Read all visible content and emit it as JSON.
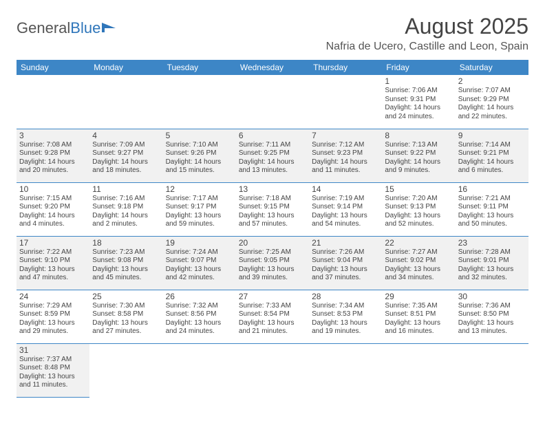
{
  "brand": {
    "part1": "General",
    "part2": "Blue"
  },
  "title": "August 2025",
  "location": "Nafria de Ucero, Castille and Leon, Spain",
  "colors": {
    "header_bg": "#3d86c6",
    "header_text": "#ffffff",
    "alt_row_bg": "#f1f1f1",
    "border": "#3d86c6",
    "logo_accent": "#2f76ba"
  },
  "typography": {
    "title_fontsize": 32,
    "location_fontsize": 16,
    "dayheader_fontsize": 12,
    "daynum_fontsize": 12,
    "cell_fontsize": 10
  },
  "day_headers": [
    "Sunday",
    "Monday",
    "Tuesday",
    "Wednesday",
    "Thursday",
    "Friday",
    "Saturday"
  ],
  "first_weekday_index": 5,
  "days": [
    {
      "n": 1,
      "sunrise": "7:06 AM",
      "sunset": "9:31 PM",
      "daylight": "14 hours and 24 minutes."
    },
    {
      "n": 2,
      "sunrise": "7:07 AM",
      "sunset": "9:29 PM",
      "daylight": "14 hours and 22 minutes."
    },
    {
      "n": 3,
      "sunrise": "7:08 AM",
      "sunset": "9:28 PM",
      "daylight": "14 hours and 20 minutes."
    },
    {
      "n": 4,
      "sunrise": "7:09 AM",
      "sunset": "9:27 PM",
      "daylight": "14 hours and 18 minutes."
    },
    {
      "n": 5,
      "sunrise": "7:10 AM",
      "sunset": "9:26 PM",
      "daylight": "14 hours and 15 minutes."
    },
    {
      "n": 6,
      "sunrise": "7:11 AM",
      "sunset": "9:25 PM",
      "daylight": "14 hours and 13 minutes."
    },
    {
      "n": 7,
      "sunrise": "7:12 AM",
      "sunset": "9:23 PM",
      "daylight": "14 hours and 11 minutes."
    },
    {
      "n": 8,
      "sunrise": "7:13 AM",
      "sunset": "9:22 PM",
      "daylight": "14 hours and 9 minutes."
    },
    {
      "n": 9,
      "sunrise": "7:14 AM",
      "sunset": "9:21 PM",
      "daylight": "14 hours and 6 minutes."
    },
    {
      "n": 10,
      "sunrise": "7:15 AM",
      "sunset": "9:20 PM",
      "daylight": "14 hours and 4 minutes."
    },
    {
      "n": 11,
      "sunrise": "7:16 AM",
      "sunset": "9:18 PM",
      "daylight": "14 hours and 2 minutes."
    },
    {
      "n": 12,
      "sunrise": "7:17 AM",
      "sunset": "9:17 PM",
      "daylight": "13 hours and 59 minutes."
    },
    {
      "n": 13,
      "sunrise": "7:18 AM",
      "sunset": "9:15 PM",
      "daylight": "13 hours and 57 minutes."
    },
    {
      "n": 14,
      "sunrise": "7:19 AM",
      "sunset": "9:14 PM",
      "daylight": "13 hours and 54 minutes."
    },
    {
      "n": 15,
      "sunrise": "7:20 AM",
      "sunset": "9:13 PM",
      "daylight": "13 hours and 52 minutes."
    },
    {
      "n": 16,
      "sunrise": "7:21 AM",
      "sunset": "9:11 PM",
      "daylight": "13 hours and 50 minutes."
    },
    {
      "n": 17,
      "sunrise": "7:22 AM",
      "sunset": "9:10 PM",
      "daylight": "13 hours and 47 minutes."
    },
    {
      "n": 18,
      "sunrise": "7:23 AM",
      "sunset": "9:08 PM",
      "daylight": "13 hours and 45 minutes."
    },
    {
      "n": 19,
      "sunrise": "7:24 AM",
      "sunset": "9:07 PM",
      "daylight": "13 hours and 42 minutes."
    },
    {
      "n": 20,
      "sunrise": "7:25 AM",
      "sunset": "9:05 PM",
      "daylight": "13 hours and 39 minutes."
    },
    {
      "n": 21,
      "sunrise": "7:26 AM",
      "sunset": "9:04 PM",
      "daylight": "13 hours and 37 minutes."
    },
    {
      "n": 22,
      "sunrise": "7:27 AM",
      "sunset": "9:02 PM",
      "daylight": "13 hours and 34 minutes."
    },
    {
      "n": 23,
      "sunrise": "7:28 AM",
      "sunset": "9:01 PM",
      "daylight": "13 hours and 32 minutes."
    },
    {
      "n": 24,
      "sunrise": "7:29 AM",
      "sunset": "8:59 PM",
      "daylight": "13 hours and 29 minutes."
    },
    {
      "n": 25,
      "sunrise": "7:30 AM",
      "sunset": "8:58 PM",
      "daylight": "13 hours and 27 minutes."
    },
    {
      "n": 26,
      "sunrise": "7:32 AM",
      "sunset": "8:56 PM",
      "daylight": "13 hours and 24 minutes."
    },
    {
      "n": 27,
      "sunrise": "7:33 AM",
      "sunset": "8:54 PM",
      "daylight": "13 hours and 21 minutes."
    },
    {
      "n": 28,
      "sunrise": "7:34 AM",
      "sunset": "8:53 PM",
      "daylight": "13 hours and 19 minutes."
    },
    {
      "n": 29,
      "sunrise": "7:35 AM",
      "sunset": "8:51 PM",
      "daylight": "13 hours and 16 minutes."
    },
    {
      "n": 30,
      "sunrise": "7:36 AM",
      "sunset": "8:50 PM",
      "daylight": "13 hours and 13 minutes."
    },
    {
      "n": 31,
      "sunrise": "7:37 AM",
      "sunset": "8:48 PM",
      "daylight": "13 hours and 11 minutes."
    }
  ],
  "labels": {
    "sunrise_prefix": "Sunrise: ",
    "sunset_prefix": "Sunset: ",
    "daylight_prefix": "Daylight: "
  }
}
